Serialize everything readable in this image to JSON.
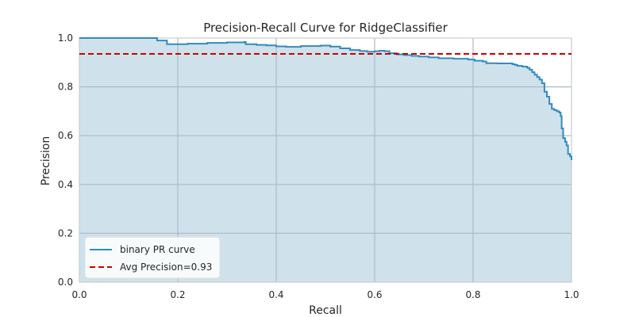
{
  "chart_data": {
    "type": "line",
    "title": "Precision-Recall Curve for RidgeClassifier",
    "xlabel": "Recall",
    "ylabel": "Precision",
    "xlim": [
      0.0,
      1.0
    ],
    "ylim": [
      0.0,
      1.0
    ],
    "xticks": [
      "0.0",
      "0.2",
      "0.4",
      "0.6",
      "0.8",
      "1.0"
    ],
    "yticks": [
      "0.0",
      "0.2",
      "0.4",
      "0.6",
      "0.8",
      "1.0"
    ],
    "grid": true,
    "legend_position": "lower-left",
    "series": [
      {
        "name": "binary PR curve",
        "color": "#348ABD",
        "fill_color": "#CFE2EC",
        "step": true,
        "points": [
          [
            0.0,
            1.0
          ],
          [
            0.155,
            1.0
          ],
          [
            0.158,
            0.99
          ],
          [
            0.175,
            0.99
          ],
          [
            0.178,
            0.975
          ],
          [
            0.22,
            0.977
          ],
          [
            0.26,
            0.98
          ],
          [
            0.3,
            0.982
          ],
          [
            0.335,
            0.984
          ],
          [
            0.338,
            0.975
          ],
          [
            0.36,
            0.972
          ],
          [
            0.38,
            0.97
          ],
          [
            0.4,
            0.966
          ],
          [
            0.42,
            0.964
          ],
          [
            0.45,
            0.967
          ],
          [
            0.49,
            0.969
          ],
          [
            0.51,
            0.965
          ],
          [
            0.53,
            0.958
          ],
          [
            0.55,
            0.951
          ],
          [
            0.57,
            0.947
          ],
          [
            0.585,
            0.944
          ],
          [
            0.6,
            0.946
          ],
          [
            0.61,
            0.948
          ],
          [
            0.62,
            0.946
          ],
          [
            0.63,
            0.938
          ],
          [
            0.645,
            0.933
          ],
          [
            0.66,
            0.93
          ],
          [
            0.675,
            0.927
          ],
          [
            0.69,
            0.924
          ],
          [
            0.71,
            0.921
          ],
          [
            0.73,
            0.917
          ],
          [
            0.76,
            0.915
          ],
          [
            0.79,
            0.912
          ],
          [
            0.8,
            0.912
          ],
          [
            0.803,
            0.907
          ],
          [
            0.82,
            0.904
          ],
          [
            0.827,
            0.897
          ],
          [
            0.85,
            0.896
          ],
          [
            0.88,
            0.893
          ],
          [
            0.885,
            0.89
          ],
          [
            0.89,
            0.886
          ],
          [
            0.9,
            0.883
          ],
          [
            0.91,
            0.878
          ],
          [
            0.915,
            0.87
          ],
          [
            0.92,
            0.86
          ],
          [
            0.925,
            0.85
          ],
          [
            0.93,
            0.84
          ],
          [
            0.935,
            0.83
          ],
          [
            0.94,
            0.815
          ],
          [
            0.945,
            0.78
          ],
          [
            0.95,
            0.76
          ],
          [
            0.955,
            0.73
          ],
          [
            0.96,
            0.71
          ],
          [
            0.965,
            0.705
          ],
          [
            0.97,
            0.7
          ],
          [
            0.975,
            0.695
          ],
          [
            0.978,
            0.68
          ],
          [
            0.98,
            0.63
          ],
          [
            0.983,
            0.59
          ],
          [
            0.987,
            0.575
          ],
          [
            0.99,
            0.56
          ],
          [
            0.993,
            0.525
          ],
          [
            0.997,
            0.515
          ],
          [
            1.0,
            0.5
          ]
        ]
      },
      {
        "name": "Avg Precision=0.93",
        "color": "#CC0000",
        "dashed": true,
        "constant_y": 0.935
      }
    ]
  }
}
